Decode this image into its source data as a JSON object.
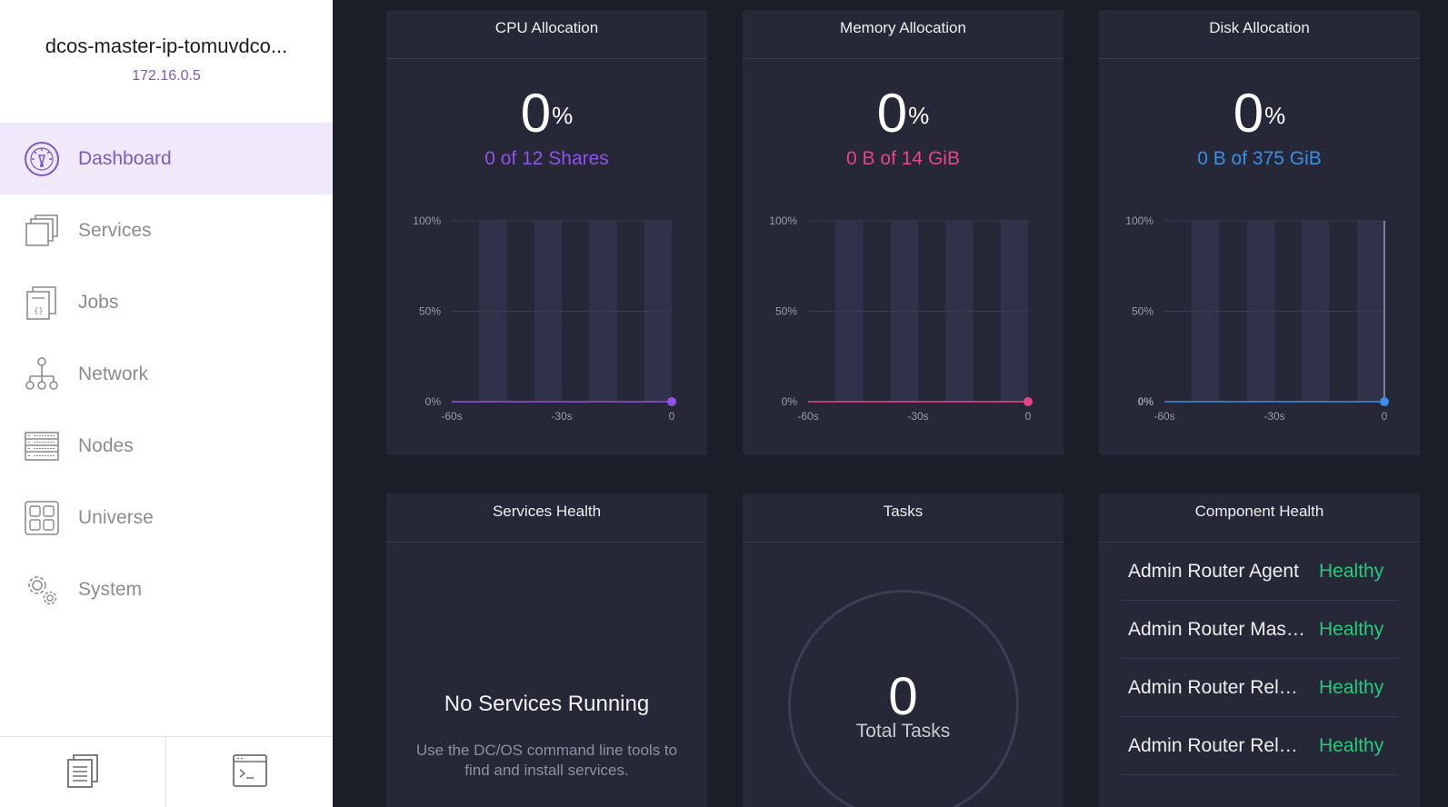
{
  "sidebar": {
    "cluster_name": "dcos-master-ip-tomuvdco...",
    "cluster_ip": "172.16.0.5",
    "nav": [
      {
        "label": "Dashboard",
        "icon": "dashboard-icon",
        "active": true
      },
      {
        "label": "Services",
        "icon": "services-icon",
        "active": false
      },
      {
        "label": "Jobs",
        "icon": "jobs-icon",
        "active": false
      },
      {
        "label": "Network",
        "icon": "network-icon",
        "active": false
      },
      {
        "label": "Nodes",
        "icon": "nodes-icon",
        "active": false
      },
      {
        "label": "Universe",
        "icon": "universe-icon",
        "active": false
      },
      {
        "label": "System",
        "icon": "system-icon",
        "active": false
      }
    ],
    "footer": [
      {
        "icon": "documentation-icon"
      },
      {
        "icon": "cli-terminal-icon"
      }
    ]
  },
  "colors": {
    "accent": "#7d58c6",
    "cpu": "#9351e5",
    "memory": "#e8458b",
    "disk": "#3a8eea",
    "healthy": "#27c97b"
  },
  "panels": {
    "cpu": {
      "title": "CPU Allocation",
      "value": "0",
      "unit": "%",
      "detail": "0 of 12 Shares"
    },
    "memory": {
      "title": "Memory Allocation",
      "value": "0",
      "unit": "%",
      "detail": "0 B of 14 GiB"
    },
    "disk": {
      "title": "Disk Allocation",
      "value": "0",
      "unit": "%",
      "detail": "0 B of 375 GiB"
    },
    "services_health": {
      "title": "Services Health",
      "empty_title": "No Services Running",
      "empty_desc": "Use the DC/OS command line tools to find and install services."
    },
    "tasks": {
      "title": "Tasks",
      "count": "0",
      "label": "Total Tasks"
    },
    "component_health": {
      "title": "Component Health",
      "rows": [
        {
          "name": "Admin Router Agent",
          "status": "Healthy"
        },
        {
          "name": "Admin Router Master",
          "status": "Healthy"
        },
        {
          "name": "Admin Router Reloader",
          "status": "Healthy"
        },
        {
          "name": "Admin Router Reloader Timer",
          "status": "Healthy"
        }
      ]
    }
  },
  "chart_data": [
    {
      "type": "line",
      "title": "CPU Allocation",
      "x": [
        -60,
        -30,
        0
      ],
      "x_tick_labels": [
        "-60s",
        "-30s",
        "0"
      ],
      "y_tick_labels": [
        "100%",
        "50%",
        "0%"
      ],
      "ylim": [
        0,
        100
      ],
      "series": [
        {
          "values": [
            0,
            0,
            0
          ]
        }
      ],
      "grid": true
    },
    {
      "type": "line",
      "title": "Memory Allocation",
      "x": [
        -60,
        -30,
        0
      ],
      "x_tick_labels": [
        "-60s",
        "-30s",
        "0"
      ],
      "y_tick_labels": [
        "100%",
        "50%",
        "0%"
      ],
      "ylim": [
        0,
        100
      ],
      "series": [
        {
          "values": [
            0,
            0,
            0
          ]
        }
      ],
      "grid": true
    },
    {
      "type": "line",
      "title": "Disk Allocation",
      "x": [
        -60,
        -30,
        0
      ],
      "x_tick_labels": [
        "-60s",
        "-30s",
        "0"
      ],
      "y_tick_labels": [
        "100%",
        "50%",
        "0%"
      ],
      "ylim": [
        0,
        100
      ],
      "series": [
        {
          "values": [
            0,
            0,
            0
          ]
        }
      ],
      "grid": true
    }
  ]
}
